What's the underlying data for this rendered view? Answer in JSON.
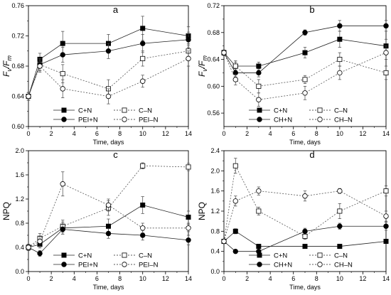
{
  "chart_data": [
    {
      "type": "line",
      "panel_label": "a",
      "ylabel": "Fv/Fm",
      "xlabel": "Time, days",
      "xlim": [
        0,
        14
      ],
      "ylim": [
        0.6,
        0.76
      ],
      "x_ticks": [
        "0",
        "2",
        "4",
        "6",
        "8",
        "10",
        "12",
        "14"
      ],
      "y_ticks": [
        "0.60",
        "0.64",
        "0.68",
        "0.72",
        "0.76"
      ],
      "series": [
        {
          "name": "C+N",
          "marker": "square",
          "fill": "filled",
          "dash": "solid",
          "x": [
            0,
            1,
            3,
            7,
            10,
            14
          ],
          "y": [
            0.64,
            0.689,
            0.71,
            0.71,
            0.73,
            0.72
          ],
          "err": [
            0.005,
            0.008,
            0.016,
            0.012,
            0.016,
            0.012
          ]
        },
        {
          "name": "C–N",
          "marker": "square",
          "fill": "open",
          "dash": "dotted",
          "x": [
            0,
            1,
            3,
            7,
            10,
            14
          ],
          "y": [
            0.64,
            0.682,
            0.67,
            0.65,
            0.69,
            0.7
          ],
          "err": [
            0.005,
            0.008,
            0.012,
            0.012,
            0.01,
            0.01
          ]
        },
        {
          "name": "PEI+N",
          "marker": "circle",
          "fill": "filled",
          "dash": "solid",
          "x": [
            0,
            1,
            3,
            7,
            10,
            14
          ],
          "y": [
            0.64,
            0.682,
            0.695,
            0.7,
            0.71,
            0.715
          ],
          "err": [
            0.005,
            0.008,
            0.01,
            0.01,
            0.012,
            0.01
          ]
        },
        {
          "name": "PEI–N",
          "marker": "circle",
          "fill": "open",
          "dash": "dotted",
          "x": [
            0,
            1,
            3,
            7,
            10,
            14
          ],
          "y": [
            0.64,
            0.68,
            0.65,
            0.64,
            0.66,
            0.69
          ],
          "err": [
            0.005,
            0.008,
            0.012,
            0.01,
            0.008,
            0.01
          ]
        }
      ]
    },
    {
      "type": "line",
      "panel_label": "b",
      "ylabel": "Fv/Fm",
      "xlabel": "Time, days",
      "xlim": [
        0,
        14
      ],
      "ylim": [
        0.54,
        0.72
      ],
      "x_ticks": [
        "0",
        "2",
        "4",
        "6",
        "8",
        "10",
        "12",
        "14"
      ],
      "y_ticks": [
        "0.56",
        "0.60",
        "0.64",
        "0.68",
        "0.72"
      ],
      "series": [
        {
          "name": "C+N",
          "marker": "square",
          "fill": "filled",
          "dash": "solid",
          "x": [
            0,
            1,
            3,
            7,
            10,
            14
          ],
          "y": [
            0.65,
            0.63,
            0.63,
            0.65,
            0.67,
            0.66
          ],
          "err": [
            0.004,
            0.006,
            0.006,
            0.008,
            0.012,
            0.01
          ]
        },
        {
          "name": "C–N",
          "marker": "square",
          "fill": "open",
          "dash": "dotted",
          "x": [
            0,
            1,
            3,
            7,
            10,
            14
          ],
          "y": [
            0.65,
            0.63,
            0.6,
            0.61,
            0.64,
            0.62
          ],
          "err": [
            0.004,
            0.008,
            0.01,
            0.006,
            0.01,
            0.01
          ]
        },
        {
          "name": "CH+N",
          "marker": "circle",
          "fill": "filled",
          "dash": "solid",
          "x": [
            0,
            1,
            3,
            7,
            10,
            14
          ],
          "y": [
            0.65,
            0.62,
            0.62,
            0.68,
            0.69,
            0.69
          ],
          "err": [
            0.004,
            0.006,
            0.006,
            0.004,
            0.008,
            0.008
          ]
        },
        {
          "name": "CH–N",
          "marker": "circle",
          "fill": "open",
          "dash": "dotted",
          "x": [
            0,
            1,
            3,
            7,
            10,
            14
          ],
          "y": [
            0.65,
            0.61,
            0.58,
            0.59,
            0.62,
            0.65
          ],
          "err": [
            0.004,
            0.008,
            0.01,
            0.01,
            0.01,
            0.01
          ]
        }
      ]
    },
    {
      "type": "line",
      "panel_label": "c",
      "ylabel": "NPQ",
      "xlabel": "Time, days",
      "xlim": [
        0,
        14
      ],
      "ylim": [
        0.0,
        2.0
      ],
      "x_ticks": [
        "0",
        "2",
        "4",
        "6",
        "8",
        "10",
        "12",
        "14"
      ],
      "y_ticks": [
        "0.0",
        "0.4",
        "0.8",
        "1.2",
        "1.6",
        "2.0"
      ],
      "series": [
        {
          "name": "C+N",
          "marker": "square",
          "fill": "filled",
          "dash": "solid",
          "x": [
            0,
            1,
            3,
            7,
            10,
            14
          ],
          "y": [
            0.4,
            0.45,
            0.72,
            0.75,
            1.1,
            0.9
          ],
          "err": [
            0.05,
            0.06,
            0.1,
            0.12,
            0.14,
            0.1
          ]
        },
        {
          "name": "C–N",
          "marker": "square",
          "fill": "open",
          "dash": "dotted",
          "x": [
            0,
            1,
            3,
            7,
            10,
            14
          ],
          "y": [
            0.4,
            0.55,
            0.75,
            1.05,
            1.75,
            1.73
          ],
          "err": [
            0.05,
            0.08,
            0.1,
            0.12,
            0.05,
            0.06
          ]
        },
        {
          "name": "PEI+N",
          "marker": "circle",
          "fill": "filled",
          "dash": "solid",
          "x": [
            0,
            1,
            3,
            7,
            10,
            14
          ],
          "y": [
            0.4,
            0.3,
            0.7,
            0.63,
            0.6,
            0.52
          ],
          "err": [
            0.05,
            0.05,
            0.08,
            0.08,
            0.08,
            0.08
          ]
        },
        {
          "name": "PEI–N",
          "marker": "circle",
          "fill": "open",
          "dash": "dotted",
          "x": [
            0,
            1,
            3,
            7,
            10,
            14
          ],
          "y": [
            0.4,
            0.5,
            1.45,
            1.1,
            0.72,
            0.72
          ],
          "err": [
            0.05,
            0.08,
            0.2,
            0.1,
            0.08,
            0.06
          ]
        }
      ]
    },
    {
      "type": "line",
      "panel_label": "d",
      "ylabel": "NPQ",
      "xlabel": "Time, days",
      "xlim": [
        0,
        14
      ],
      "ylim": [
        0.0,
        2.4
      ],
      "x_ticks": [
        "0",
        "2",
        "4",
        "6",
        "8",
        "10",
        "12",
        "14"
      ],
      "y_ticks": [
        "0.0",
        "0.4",
        "0.8",
        "1.2",
        "1.6",
        "2.0",
        "2.4"
      ],
      "series": [
        {
          "name": "C+N",
          "marker": "square",
          "fill": "filled",
          "dash": "solid",
          "x": [
            0,
            1,
            3,
            7,
            10,
            14
          ],
          "y": [
            0.6,
            0.8,
            0.5,
            0.5,
            0.5,
            0.6
          ],
          "err": [
            0.04,
            0.05,
            0.04,
            0.04,
            0.04,
            0.03
          ]
        },
        {
          "name": "C–N",
          "marker": "square",
          "fill": "open",
          "dash": "dotted",
          "x": [
            0,
            1,
            3,
            7,
            10,
            14
          ],
          "y": [
            0.6,
            2.1,
            1.2,
            0.7,
            1.2,
            1.6
          ],
          "err": [
            0.04,
            0.15,
            0.08,
            0.06,
            0.15,
            0.1
          ]
        },
        {
          "name": "CH+N",
          "marker": "circle",
          "fill": "filled",
          "dash": "solid",
          "x": [
            0,
            1,
            3,
            7,
            10,
            14
          ],
          "y": [
            0.6,
            0.4,
            0.4,
            0.8,
            0.9,
            0.9
          ],
          "err": [
            0.04,
            0.03,
            0.04,
            0.06,
            0.06,
            0.08
          ]
        },
        {
          "name": "CH–N",
          "marker": "circle",
          "fill": "open",
          "dash": "dotted",
          "x": [
            0,
            1,
            3,
            7,
            10,
            14
          ],
          "y": [
            0.6,
            1.4,
            1.6,
            1.5,
            1.6,
            1.1
          ],
          "err": [
            0.04,
            0.1,
            0.08,
            0.1,
            0.05,
            0.1
          ]
        }
      ]
    }
  ]
}
